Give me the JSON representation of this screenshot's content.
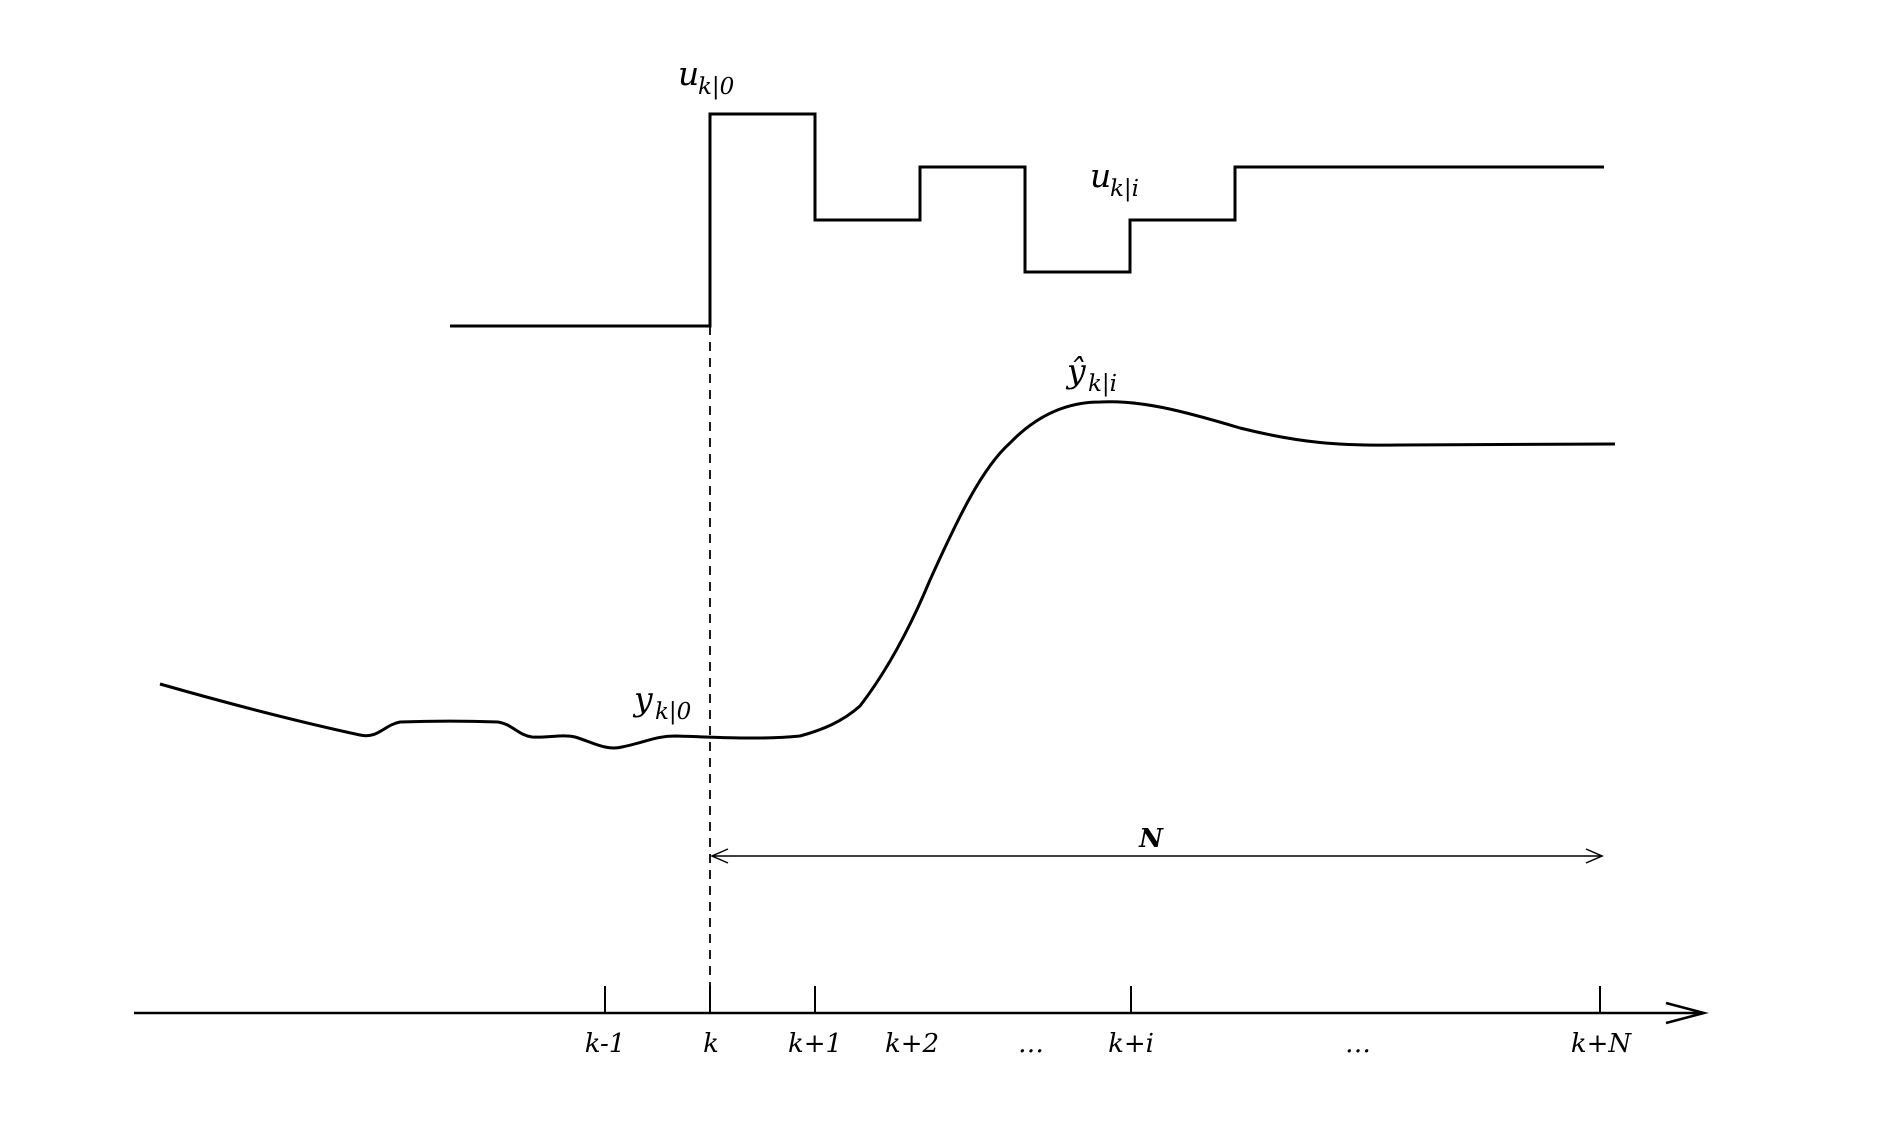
{
  "labels": {
    "u_k0_main": "u",
    "u_k0_sub": "k|0",
    "u_ki_main": "u",
    "u_ki_sub": "k|i",
    "yhat_ki_main": "ŷ",
    "yhat_ki_sub": "k|i",
    "y_k0_main": "y",
    "y_k0_sub": "k|0",
    "horizon": "N"
  },
  "ticks": [
    "k-1",
    "k",
    "k+1",
    "k+2",
    "…",
    "k+i",
    "…",
    "k+N"
  ]
}
